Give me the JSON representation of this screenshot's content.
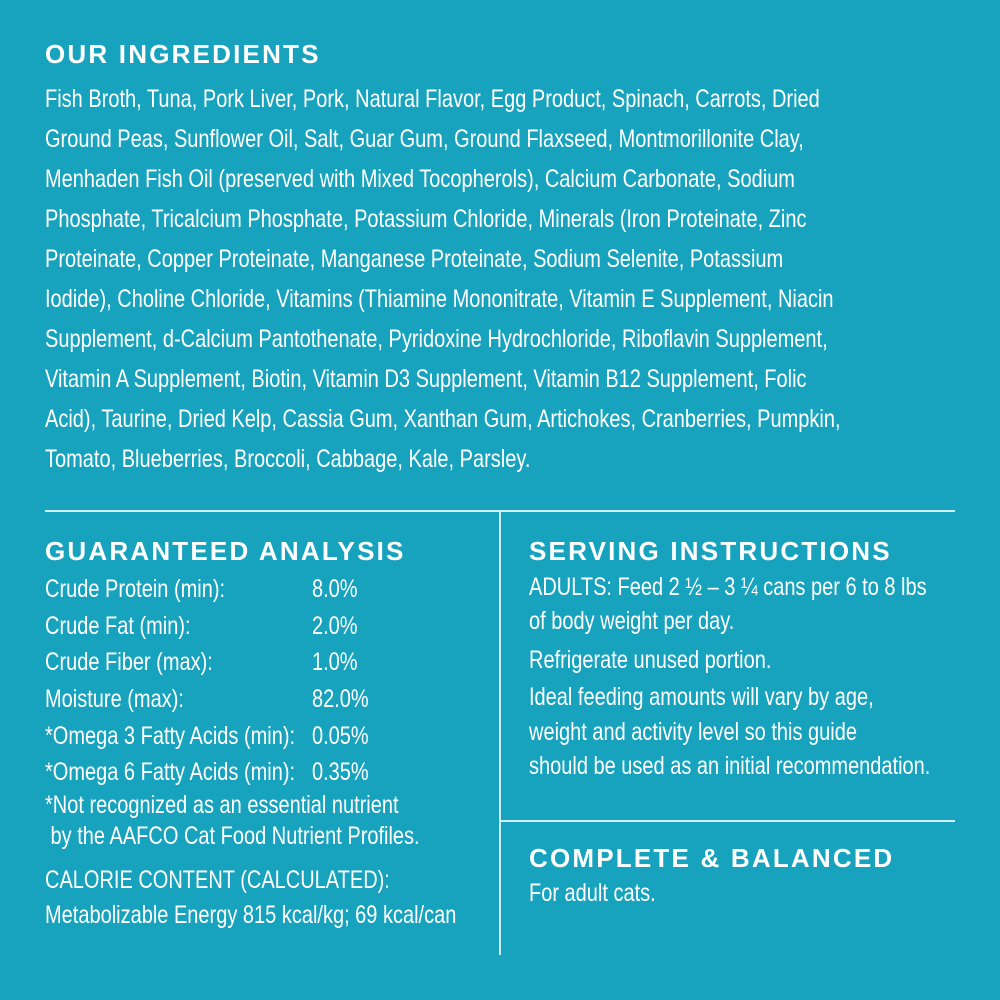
{
  "ingredients": {
    "heading": "OUR INGREDIENTS",
    "lines": [
      "Fish Broth, Tuna, Pork Liver, Pork, Natural Flavor, Egg Product, Spinach, Carrots, Dried",
      "Ground Peas, Sunflower Oil, Salt, Guar Gum, Ground Flaxseed, Montmorillonite Clay,",
      "Menhaden Fish Oil (preserved with Mixed Tocopherols), Calcium Carbonate, Sodium",
      "Phosphate, Tricalcium Phosphate, Potassium Chloride, Minerals (Iron Proteinate, Zinc",
      "Proteinate, Copper Proteinate, Manganese Proteinate, Sodium Selenite, Potassium",
      "Iodide), Choline Chloride, Vitamins (Thiamine Mononitrate, Vitamin E Supplement, Niacin",
      "Supplement, d-Calcium Pantothenate, Pyridoxine Hydrochloride, Riboflavin Supplement,",
      "Vitamin A Supplement, Biotin, Vitamin D3 Supplement, Vitamin B12 Supplement, Folic",
      "Acid), Taurine, Dried Kelp, Cassia Gum, Xanthan Gum, Artichokes, Cranberries, Pumpkin,",
      "Tomato, Blueberries, Broccoli, Cabbage, Kale, Parsley."
    ]
  },
  "analysis": {
    "heading": "GUARANTEED ANALYSIS",
    "rows": [
      {
        "label": "Crude Protein (min):",
        "value": "8.0%"
      },
      {
        "label": "Crude Fat (min):",
        "value": "2.0%"
      },
      {
        "label": "Crude Fiber (max):",
        "value": "1.0%"
      },
      {
        "label": "Moisture (max):",
        "value": "82.0%"
      },
      {
        "label": "*Omega 3 Fatty Acids (min):",
        "value": "0.05%"
      },
      {
        "label": "*Omega 6 Fatty Acids (min):",
        "value": "0.35%"
      }
    ],
    "footnote": [
      "*Not recognized as an essential nutrient",
      " by the AAFCO Cat Food Nutrient Profiles."
    ],
    "calorie": [
      "CALORIE CONTENT (CALCULATED):",
      "Metabolizable Energy 815 kcal/kg; 69 kcal/can"
    ]
  },
  "serving": {
    "heading": "SERVING INSTRUCTIONS",
    "lines": [
      "ADULTS: Feed 2 ½ – 3 ¼ cans per 6 to 8 lbs",
      "of body weight per day.",
      "Refrigerate unused portion.",
      "Ideal feeding amounts will vary by age,",
      "weight and activity level so this guide",
      "should be used as an initial recommendation."
    ]
  },
  "complete": {
    "heading": "COMPLETE & BALANCED",
    "text": "For adult cats."
  },
  "colors": {
    "background": "#17a3be",
    "text": "#ffffff"
  }
}
